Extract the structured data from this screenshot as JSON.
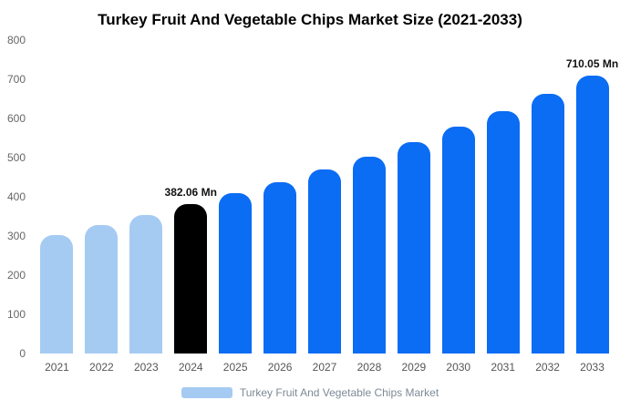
{
  "chart_data": {
    "type": "bar",
    "title": "Turkey Fruit And Vegetable Chips Market Size (2021-2033)",
    "xlabel": "",
    "ylabel": "",
    "ylim": [
      0,
      800
    ],
    "yticks": [
      0,
      100,
      200,
      300,
      400,
      500,
      600,
      700,
      800
    ],
    "grid": false,
    "legend_position": "bottom",
    "categories": [
      "2021",
      "2022",
      "2023",
      "2024",
      "2025",
      "2026",
      "2027",
      "2028",
      "2029",
      "2030",
      "2031",
      "2032",
      "2033"
    ],
    "values": [
      303,
      327,
      354,
      382.06,
      409,
      438,
      470,
      503,
      539,
      578,
      619,
      663,
      710.05
    ],
    "bar_colors": [
      "#a6cbf2",
      "#a6cbf2",
      "#a6cbf2",
      "#000000",
      "#0b6cf4",
      "#0b6cf4",
      "#0b6cf4",
      "#0b6cf4",
      "#0b6cf4",
      "#0b6cf4",
      "#0b6cf4",
      "#0b6cf4",
      "#0b6cf4"
    ],
    "annotations": [
      {
        "index": 3,
        "text": "382.06 Mn"
      },
      {
        "index": 12,
        "text": "710.05 Mn"
      }
    ],
    "legend": [
      {
        "label": "Turkey Fruit And Vegetable Chips Market",
        "color": "#a6cbf2"
      }
    ],
    "colors": {
      "historical_bar": "#a6cbf2",
      "highlight_bar": "#000000",
      "forecast_bar": "#0b6cf4",
      "title_text": "#000000",
      "axis_text": "#666666",
      "legend_text": "#7d8a96",
      "background": "#ffffff"
    }
  }
}
